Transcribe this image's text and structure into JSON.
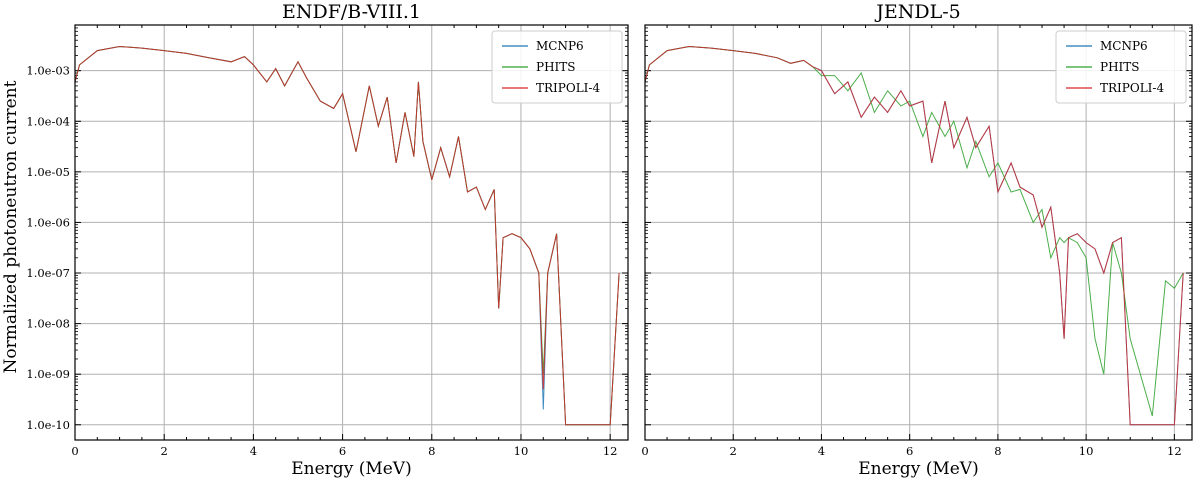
{
  "chart_data": {
    "type": "line",
    "ylabel": "Normalized photoneutron current",
    "yscale": "log",
    "y_ticks": [
      "1.0e-03",
      "1.0e-04",
      "1.0e-05",
      "1.0e-06",
      "1.0e-07",
      "1.0e-08",
      "1.0e-09",
      "1.0e-10"
    ],
    "x_ticks": [
      "0",
      "2",
      "4",
      "6",
      "8",
      "10",
      "12"
    ],
    "panels": [
      {
        "title": "ENDF/B-VIII.1",
        "xlabel": "Energy (MeV)",
        "xlim": [
          0,
          12.4
        ],
        "ylim": [
          5e-11,
          0.008
        ],
        "legend_position": "top-right",
        "series": [
          {
            "name": "MCNP6",
            "color": "#1f77b4",
            "x": [
              0,
              0.1,
              0.5,
              1,
              1.5,
              2,
              2.5,
              3,
              3.5,
              3.8,
              4,
              4.3,
              4.5,
              4.7,
              5,
              5.2,
              5.5,
              5.8,
              6,
              6.3,
              6.6,
              6.8,
              7,
              7.2,
              7.4,
              7.6,
              7.7,
              7.8,
              8,
              8.2,
              8.4,
              8.6,
              8.8,
              9,
              9.2,
              9.4,
              9.5,
              9.6,
              9.8,
              10,
              10.2,
              10.4,
              10.5,
              10.6,
              10.8,
              11,
              11.5,
              12,
              12.2
            ],
            "y": [
              0.0006,
              0.0013,
              0.0025,
              0.003,
              0.0028,
              0.0025,
              0.0022,
              0.0018,
              0.0015,
              0.0019,
              0.0013,
              0.0006,
              0.0011,
              0.0005,
              0.0015,
              0.0007,
              0.00025,
              0.00018,
              0.00035,
              2.5e-05,
              0.0005,
              8e-05,
              0.0003,
              1.5e-05,
              0.00015,
              2e-05,
              0.0006,
              4e-05,
              7e-06,
              3e-05,
              8e-06,
              5e-05,
              4e-06,
              5e-06,
              1.8e-06,
              4.5e-06,
              2e-08,
              5e-07,
              6e-07,
              5e-07,
              3e-07,
              1e-07,
              2e-10,
              1e-07,
              6e-07,
              1e-10,
              1e-10,
              1e-10,
              1e-07
            ]
          },
          {
            "name": "PHITS",
            "color": "#2ca02c",
            "x": [
              0,
              0.1,
              0.5,
              1,
              1.5,
              2,
              2.5,
              3,
              3.5,
              3.8,
              4,
              4.3,
              4.5,
              4.7,
              5,
              5.2,
              5.5,
              5.8,
              6,
              6.3,
              6.6,
              6.8,
              7,
              7.2,
              7.4,
              7.6,
              7.7,
              7.8,
              8,
              8.2,
              8.4,
              8.6,
              8.8,
              9,
              9.2,
              9.4,
              9.5,
              9.6,
              9.8,
              10,
              10.2,
              10.4,
              10.5,
              10.6,
              10.8,
              11,
              11.5,
              12,
              12.2
            ],
            "y": [
              0.0006,
              0.0013,
              0.0025,
              0.003,
              0.0028,
              0.0025,
              0.0022,
              0.0018,
              0.0015,
              0.0019,
              0.0013,
              0.0006,
              0.0011,
              0.0005,
              0.0015,
              0.0007,
              0.00025,
              0.00018,
              0.00035,
              2.5e-05,
              0.0005,
              8e-05,
              0.0003,
              1.5e-05,
              0.00015,
              2e-05,
              0.0006,
              4e-05,
              7e-06,
              3e-05,
              8e-06,
              5e-05,
              4e-06,
              5e-06,
              1.8e-06,
              4.5e-06,
              2e-08,
              5e-07,
              6e-07,
              5e-07,
              3e-07,
              1e-07,
              1e-09,
              1e-07,
              6e-07,
              1e-10,
              1e-10,
              1e-10,
              1e-07
            ]
          },
          {
            "name": "TRIPOLI-4",
            "color": "#d62728",
            "x": [
              0,
              0.1,
              0.5,
              1,
              1.5,
              2,
              2.5,
              3,
              3.5,
              3.8,
              4,
              4.3,
              4.5,
              4.7,
              5,
              5.2,
              5.5,
              5.8,
              6,
              6.3,
              6.6,
              6.8,
              7,
              7.2,
              7.4,
              7.6,
              7.7,
              7.8,
              8,
              8.2,
              8.4,
              8.6,
              8.8,
              9,
              9.2,
              9.4,
              9.5,
              9.6,
              9.8,
              10,
              10.2,
              10.4,
              10.5,
              10.6,
              10.8,
              11,
              11.5,
              12,
              12.2
            ],
            "y": [
              0.0006,
              0.0013,
              0.0025,
              0.003,
              0.0028,
              0.0025,
              0.0022,
              0.0018,
              0.0015,
              0.0019,
              0.0013,
              0.0006,
              0.0011,
              0.0005,
              0.0015,
              0.0007,
              0.00025,
              0.00018,
              0.00035,
              2.5e-05,
              0.0005,
              8e-05,
              0.0003,
              1.5e-05,
              0.00015,
              2e-05,
              0.0006,
              4e-05,
              7e-06,
              3e-05,
              8e-06,
              5e-05,
              4e-06,
              5e-06,
              1.8e-06,
              4.5e-06,
              2e-08,
              5e-07,
              6e-07,
              5e-07,
              3e-07,
              1e-07,
              5e-10,
              1e-07,
              6e-07,
              1e-10,
              1e-10,
              1e-10,
              1e-07
            ]
          }
        ]
      },
      {
        "title": "JENDL-5",
        "xlabel": "Energy (MeV)",
        "xlim": [
          0,
          12.4
        ],
        "ylim": [
          5e-11,
          0.008
        ],
        "legend_position": "top-right",
        "series": [
          {
            "name": "MCNP6",
            "color": "#1f77b4",
            "x": [
              0,
              0.1,
              0.5,
              1,
              1.5,
              2,
              2.5,
              3,
              3.3,
              3.6,
              3.8,
              4,
              4.3,
              4.6,
              4.9,
              5.2,
              5.5,
              5.8,
              6,
              6.3,
              6.5,
              6.8,
              7,
              7.3,
              7.5,
              7.8,
              8,
              8.3,
              8.5,
              8.8,
              9,
              9.2,
              9.4,
              9.5,
              9.6,
              9.8,
              10,
              10.2,
              10.4,
              10.6,
              10.8,
              11,
              11.5,
              12,
              12.2
            ],
            "y": [
              0.0006,
              0.0013,
              0.0025,
              0.003,
              0.0028,
              0.0025,
              0.0022,
              0.0018,
              0.0014,
              0.0016,
              0.0012,
              0.001,
              0.00035,
              0.0006,
              0.00012,
              0.0003,
              0.00015,
              0.0004,
              0.0002,
              0.00025,
              1.5e-05,
              0.00025,
              3e-05,
              0.00012,
              3e-05,
              8e-05,
              4e-06,
              1.5e-05,
              5e-06,
              3.5e-06,
              8e-07,
              2e-06,
              1e-07,
              5e-09,
              5e-07,
              6e-07,
              4e-07,
              3e-07,
              1e-07,
              4e-07,
              5e-07,
              1e-10,
              1e-10,
              1e-10,
              1e-07
            ]
          },
          {
            "name": "PHITS",
            "color": "#2ca02c",
            "x": [
              0,
              0.1,
              0.5,
              1,
              1.5,
              2,
              2.5,
              3,
              3.3,
              3.6,
              3.8,
              4,
              4.3,
              4.6,
              4.9,
              5.2,
              5.5,
              5.8,
              6,
              6.3,
              6.5,
              6.8,
              7,
              7.3,
              7.5,
              7.8,
              8,
              8.3,
              8.5,
              8.8,
              9,
              9.2,
              9.4,
              9.5,
              9.6,
              9.8,
              10,
              10.2,
              10.4,
              10.6,
              10.8,
              11,
              11.5,
              11.8,
              12,
              12.2
            ],
            "y": [
              0.0006,
              0.0013,
              0.0025,
              0.003,
              0.0028,
              0.0025,
              0.0022,
              0.0018,
              0.0014,
              0.0016,
              0.0012,
              0.0008,
              0.0008,
              0.0004,
              0.0009,
              0.00015,
              0.0004,
              0.0002,
              0.00025,
              5e-05,
              0.00015,
              5e-05,
              0.0001,
              1.2e-05,
              4e-05,
              8e-06,
              1.5e-05,
              4e-06,
              4.5e-06,
              1e-06,
              1.8e-06,
              2e-07,
              5e-07,
              4e-07,
              5e-07,
              4e-07,
              2e-07,
              5e-09,
              1e-09,
              4e-07,
              1e-07,
              5e-09,
              1.5e-10,
              7e-08,
              5e-08,
              1e-07
            ]
          },
          {
            "name": "TRIPOLI-4",
            "color": "#d62728",
            "x": [
              0,
              0.1,
              0.5,
              1,
              1.5,
              2,
              2.5,
              3,
              3.3,
              3.6,
              3.8,
              4,
              4.3,
              4.6,
              4.9,
              5.2,
              5.5,
              5.8,
              6,
              6.3,
              6.5,
              6.8,
              7,
              7.3,
              7.5,
              7.8,
              8,
              8.3,
              8.5,
              8.8,
              9,
              9.2,
              9.4,
              9.5,
              9.6,
              9.8,
              10,
              10.2,
              10.4,
              10.6,
              10.8,
              11,
              11.5,
              12,
              12.2
            ],
            "y": [
              0.0006,
              0.0013,
              0.0025,
              0.003,
              0.0028,
              0.0025,
              0.0022,
              0.0018,
              0.0014,
              0.0016,
              0.0012,
              0.001,
              0.00035,
              0.0006,
              0.00012,
              0.0003,
              0.00015,
              0.0004,
              0.0002,
              0.00025,
              1.5e-05,
              0.00025,
              3e-05,
              0.00012,
              3e-05,
              8e-05,
              4e-06,
              1.5e-05,
              5e-06,
              3.5e-06,
              8e-07,
              2e-06,
              1e-07,
              5e-09,
              5e-07,
              6e-07,
              4e-07,
              3e-07,
              1e-07,
              4e-07,
              5e-07,
              1e-10,
              1e-10,
              1e-10,
              1e-07
            ]
          }
        ]
      }
    ]
  }
}
